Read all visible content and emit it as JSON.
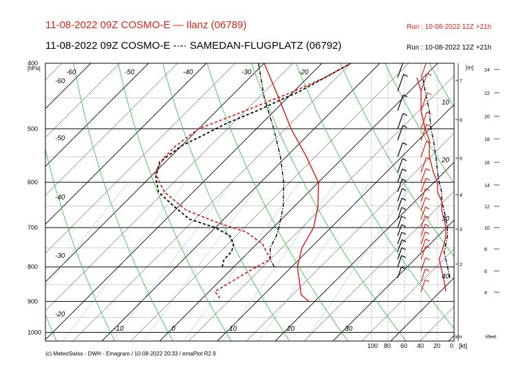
{
  "header": {
    "line1": "11-08-2022 09Z COSMO-E  —  Ilanz (06789)",
    "line2": "11-08-2022 09Z COSMO-E  -·-·  SAMEDAN-FLUGPLATZ (06792)",
    "run1": "Run : 10-08-2022 12Z +21h",
    "run2": "Run : 10-08-2022 12Z +21h"
  },
  "footer": "(c) MeteoSwiss - DWH - Emagram / 10-08-2022  20:33 / emaPlot R2.9",
  "colors": {
    "ilanz": "#e0201a",
    "samedan": "#000000",
    "isotherm": "#000000",
    "dry_adiabat": "#3cc83c",
    "mixing_ratio": "#58c8e8"
  },
  "chart_data": {
    "type": "line",
    "title": "Emagram",
    "ylabel": "[hPa]",
    "pressure_ticks": [
      "400",
      "500",
      "600",
      "700",
      "800",
      "900",
      "1000"
    ],
    "pressure_values": [
      400,
      500,
      600,
      700,
      800,
      900,
      1000
    ],
    "plim": [
      400,
      1030
    ],
    "temperature_ticks": [
      "-10",
      "0",
      "10",
      "20",
      "30"
    ],
    "temperature_values": [
      -10,
      0,
      10,
      20,
      30
    ],
    "isotherm_labels_top": [
      "-60",
      "-50",
      "-40",
      "-30",
      "-20"
    ],
    "isotherm_labels_left": [
      "-60",
      "-50",
      "-40",
      "-30",
      "-20"
    ],
    "dry_adiabat_labels": [
      "10",
      "20",
      "30",
      "40"
    ],
    "height_m_label": "[m]",
    "height_m_ticks": [
      "7",
      "6",
      "5",
      "4",
      "3",
      "2"
    ],
    "height_kfeet_label": "kfeet",
    "height_kfeet_ticks": [
      "24",
      "22",
      "20",
      "18",
      "16",
      "14",
      "12",
      "10",
      "8",
      "6",
      "4"
    ],
    "km_label": "km",
    "wind_axis_label": "[kt]",
    "wind_ticks": [
      "100",
      "80",
      "60",
      "40",
      "20",
      "0"
    ],
    "series": [
      {
        "name": "Ilanz (06789)",
        "temperature": {
          "p": [
            900,
            880,
            850,
            800,
            750,
            700,
            650,
            600,
            550,
            500,
            450,
            400
          ],
          "t": [
            19,
            16.5,
            14.5,
            11,
            8.5,
            7,
            4,
            0,
            -6.5,
            -14,
            -21.5,
            -30
          ]
        },
        "dewpoint": {
          "p": [
            890,
            870,
            820,
            780,
            740,
            710,
            690,
            660,
            620,
            580,
            550,
            530,
            500,
            470,
            440,
            420,
            400
          ],
          "t": [
            3,
            1,
            3,
            5,
            1,
            -4,
            -10,
            -18,
            -25,
            -30,
            -31,
            -31,
            -30,
            -25,
            -20,
            -17,
            -15
          ]
        },
        "wind_speed_kt": {
          "p": [
            870,
            840,
            810,
            780,
            760,
            740,
            720,
            700,
            680,
            660,
            640,
            620,
            600,
            580,
            550,
            520,
            500,
            470,
            440,
            420
          ],
          "v": [
            10,
            12,
            15,
            18,
            15,
            12,
            10,
            10,
            12,
            15,
            15,
            20,
            20,
            25,
            30,
            30,
            35,
            40,
            40,
            45
          ]
        }
      },
      {
        "name": "SAMEDAN-FLUGPLATZ (06792)",
        "temperature": {
          "p": [
            800,
            780,
            750,
            720,
            700,
            650,
            600,
            550,
            500,
            450,
            400
          ],
          "t": [
            7,
            5,
            3,
            2,
            1,
            -2,
            -6,
            -11,
            -17,
            -24,
            -31
          ]
        },
        "dewpoint": {
          "p": [
            800,
            780,
            760,
            740,
            720,
            700,
            680,
            650,
            620,
            590,
            560,
            530,
            510,
            490,
            470,
            440,
            420,
            400
          ],
          "t": [
            -2,
            -3,
            -3,
            -4,
            -6,
            -10,
            -16,
            -21,
            -26,
            -29,
            -31,
            -30,
            -28,
            -26,
            -23,
            -19,
            -17,
            -15
          ]
        },
        "wind_speed_kt": {
          "p": [
            830,
            800,
            780,
            760,
            740,
            720,
            700,
            680,
            660,
            640,
            620,
            600,
            580,
            550,
            520,
            500,
            470,
            440,
            420
          ],
          "v": [
            5,
            8,
            10,
            12,
            10,
            8,
            8,
            10,
            12,
            15,
            15,
            18,
            20,
            22,
            25,
            28,
            30,
            35,
            38
          ]
        }
      }
    ],
    "grid": true,
    "legend": "top"
  }
}
